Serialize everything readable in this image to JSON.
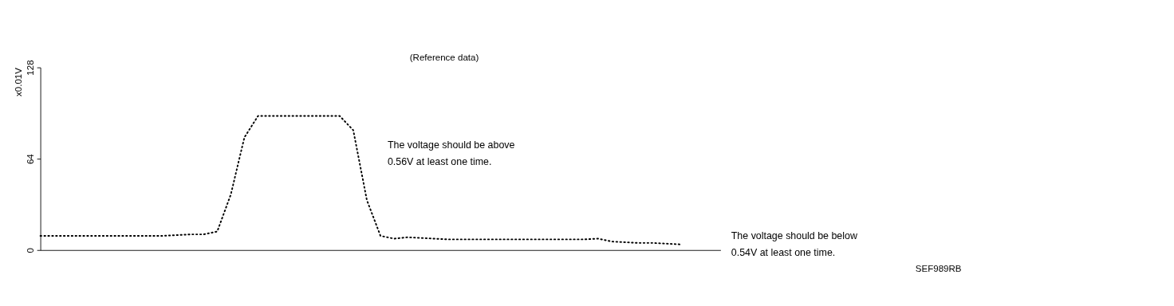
{
  "chart_data": {
    "type": "line",
    "title": "(Reference data)",
    "ylabel": "x0.01V",
    "categories": [
      null,
      null,
      null,
      null,
      null,
      null,
      null,
      null,
      null,
      null,
      null,
      null,
      null,
      null,
      null,
      null,
      null,
      null,
      null,
      null,
      null,
      null,
      null,
      null,
      null,
      null,
      null,
      null,
      null,
      null,
      null,
      null,
      null,
      null,
      null,
      null,
      null,
      null,
      null,
      null,
      null,
      null,
      null,
      null,
      null,
      null,
      null,
      null,
      null,
      null,
      null
    ],
    "series": [
      {
        "color": "#000000",
        "values": [
          10,
          10,
          10,
          10,
          10,
          10,
          10,
          10,
          10,
          10,
          10.5,
          11,
          11,
          13,
          39,
          79,
          94,
          94,
          94,
          94,
          94,
          94,
          94,
          84,
          35,
          10,
          8,
          9,
          8.5,
          8,
          7.5,
          7.5,
          7.5,
          7.5,
          7.5,
          7.5,
          7.5,
          7.5,
          7.5,
          7.5,
          7.5,
          8,
          6,
          5.5,
          5,
          5,
          4.5,
          4,
          null,
          null,
          null
        ]
      }
    ],
    "ylim": [
      0,
      128
    ],
    "yticks": [
      0,
      64,
      128
    ],
    "grid": false,
    "line_style": "dotted",
    "marker": "none",
    "tick_labels": "y",
    "annotations": [
      "The voltage should be above\n0.56V at least one time.",
      "The voltage should be below\n0.54V at least one time.",
      "SEF989RB"
    ]
  }
}
